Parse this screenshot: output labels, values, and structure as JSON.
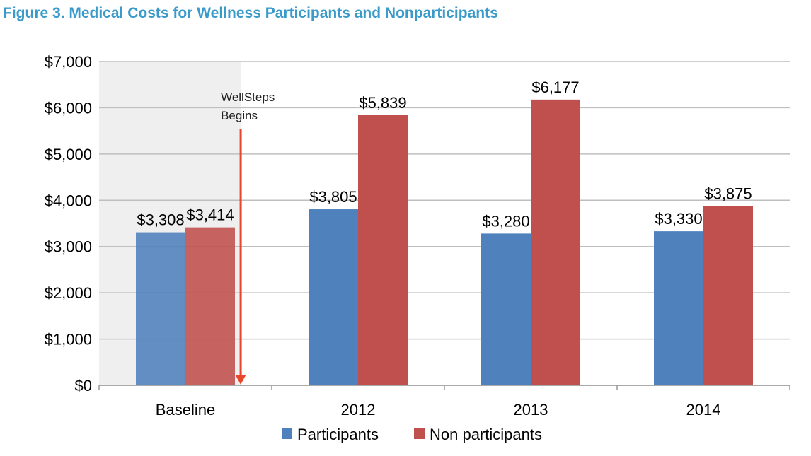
{
  "title": "Figure 3. Medical Costs for Wellness Participants and Nonparticipants",
  "colors": {
    "title": "#3a9ac9",
    "participants": "#4f81bd",
    "nonparticipants": "#c0504d",
    "baseline_shade": "#efefef",
    "arrow": "#e8462a",
    "grid": "#bfbfbf"
  },
  "chart_data": {
    "type": "bar",
    "title": "Figure 3. Medical Costs for Wellness Participants and Nonparticipants",
    "categories": [
      "Baseline",
      "2012",
      "2013",
      "2014"
    ],
    "series": [
      {
        "name": "Participants",
        "values": [
          3308,
          3805,
          3280,
          3330
        ],
        "labels": [
          "$3,308",
          "$3,805",
          "$3,280",
          "$3,330"
        ]
      },
      {
        "name": "Non participants",
        "values": [
          3414,
          5839,
          6177,
          3875
        ],
        "labels": [
          "$3,414",
          "$5,839",
          "$6,177",
          "$3,875"
        ]
      }
    ],
    "ylim": [
      0,
      7000
    ],
    "yticks": [
      0,
      1000,
      2000,
      3000,
      4000,
      5000,
      6000,
      7000
    ],
    "ytick_labels": [
      "$0",
      "$1,000",
      "$2,000",
      "$3,000",
      "$4,000",
      "$5,000",
      "$6,000",
      "$7,000"
    ],
    "grid": true,
    "legend": "bottom",
    "annotation": {
      "lines": [
        "WellSteps",
        "Begins"
      ],
      "category": "Baseline"
    }
  }
}
